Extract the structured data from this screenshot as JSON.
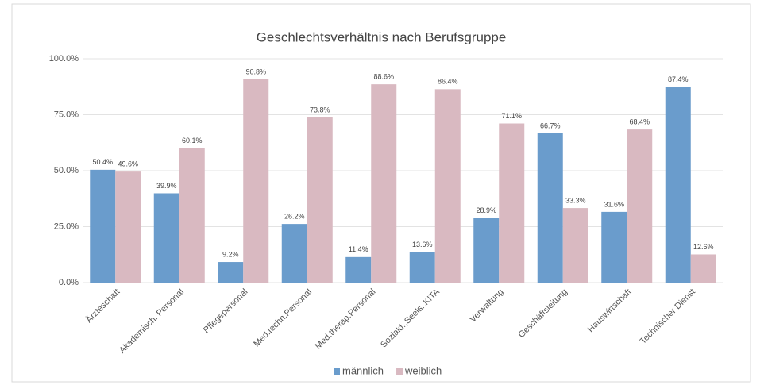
{
  "chart_data": {
    "type": "bar",
    "title": "Geschlechtsverhältnis nach Berufsgruppe",
    "categories": [
      "Ärzteschaft",
      "Akademisch. Personal",
      "Pflegepersonal",
      "Med.techn.Personal",
      "Med.therap.Personal",
      "Soziald.,Seels.,KITA",
      "Verwaltung",
      "Geschäftsleitung",
      "Hauswirtschaft",
      "Technischer Dienst"
    ],
    "series": [
      {
        "name": "männlich",
        "color": "#6a9ccc",
        "values": [
          50.4,
          39.9,
          9.2,
          26.2,
          11.4,
          13.6,
          28.9,
          66.7,
          31.6,
          87.4
        ],
        "value_labels": [
          "50.4%",
          "39.9%",
          "9.2%",
          "26.2%",
          "11.4%",
          "13.6%",
          "28.9%",
          "66.7%",
          "31.6%",
          "87.4%"
        ]
      },
      {
        "name": "weiblich",
        "color": "#d9b9c1",
        "values": [
          49.6,
          60.1,
          90.8,
          73.8,
          88.6,
          86.4,
          71.1,
          33.3,
          68.4,
          12.6
        ],
        "value_labels": [
          "49.6%",
          "60.1%",
          "90.8%",
          "73.8%",
          "88.6%",
          "86.4%",
          "71.1%",
          "33.3%",
          "68.4%",
          "12.6%"
        ]
      }
    ],
    "ylim": [
      0,
      100
    ],
    "yticks": [
      {
        "value": 0,
        "label": "0.0%"
      },
      {
        "value": 25,
        "label": "25.0%"
      },
      {
        "value": 50,
        "label": "50.0%"
      },
      {
        "value": 75,
        "label": "75.0%"
      },
      {
        "value": 100,
        "label": "100.0%"
      }
    ],
    "grid": true,
    "legend": "bottom"
  }
}
